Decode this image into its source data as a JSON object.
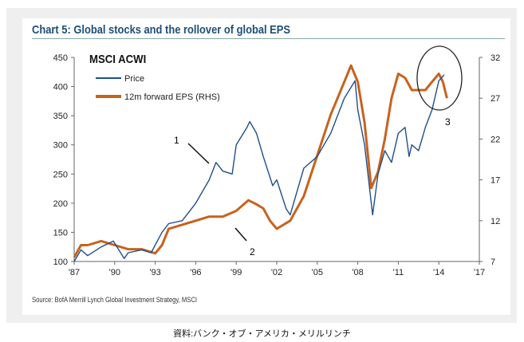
{
  "chart_data": {
    "type": "line",
    "title": "Chart 5: Global stocks and the rollover of global EPS",
    "subtitle": "MSCI ACWI",
    "source": "Source: BofA Merrill Lynch Global Investment Strategy, MSCI",
    "caption": "資料:バンク・オブ・アメリカ・メリルリンチ",
    "x_ticks": [
      "'87",
      "'90",
      "'93",
      "'96",
      "'99",
      "'02",
      "'05",
      "'08",
      "'11",
      "'14",
      "'17"
    ],
    "xlim": [
      1987,
      2017
    ],
    "ylim_left": [
      100,
      450
    ],
    "y_ticks_left": [
      "100",
      "150",
      "200",
      "250",
      "300",
      "350",
      "400",
      "450"
    ],
    "ylim_right": [
      7,
      32
    ],
    "y_ticks_right": [
      "7",
      "12",
      "17",
      "22",
      "27",
      "32"
    ],
    "legend": "top-left",
    "annotations": [
      "1",
      "2",
      "3"
    ],
    "series": [
      {
        "name": "Price",
        "axis": "left",
        "color": "#1f4e8c",
        "x": [
          1987,
          1987.5,
          1988,
          1989,
          1989.9,
          1990.7,
          1991,
          1992,
          1992.7,
          1993.5,
          1994,
          1995,
          1996,
          1997,
          1997.5,
          1998,
          1998.7,
          1999,
          1999.8,
          2000,
          2000.5,
          2001,
          2001.7,
          2002,
          2002.7,
          2003,
          2003.5,
          2004,
          2005,
          2006,
          2007,
          2007.8,
          2008,
          2008.5,
          2009.1,
          2009.5,
          2010,
          2010.5,
          2011,
          2011.5,
          2011.8,
          2012,
          2012.5,
          2013,
          2013.5,
          2014,
          2014.4
        ],
        "y": [
          100,
          120,
          110,
          125,
          135,
          105,
          115,
          120,
          115,
          150,
          165,
          170,
          200,
          240,
          270,
          255,
          250,
          300,
          330,
          340,
          320,
          280,
          230,
          240,
          190,
          180,
          220,
          260,
          280,
          320,
          380,
          410,
          360,
          300,
          180,
          250,
          290,
          270,
          320,
          330,
          280,
          300,
          290,
          330,
          360,
          410,
          420
        ]
      },
      {
        "name": "12m forward EPS (RHS)",
        "axis": "right",
        "color": "#c8621e",
        "x": [
          1987,
          1987.5,
          1988,
          1989,
          1990,
          1991,
          1992,
          1993,
          1993.5,
          1994,
          1995,
          1996,
          1997,
          1998,
          1999,
          1999.9,
          2000.5,
          2001,
          2001.5,
          2002,
          2003,
          2004,
          2005,
          2006,
          2007,
          2007.5,
          2008,
          2008.5,
          2009,
          2009.5,
          2010,
          2010.5,
          2011,
          2011.5,
          2012,
          2012.5,
          2013,
          2013.5,
          2014,
          2014.3,
          2014.6
        ],
        "y": [
          7.5,
          9,
          9,
          9.5,
          9,
          8.5,
          8.5,
          8,
          9,
          11,
          11.5,
          12,
          12.5,
          12.5,
          13.2,
          14.5,
          14,
          13.5,
          12,
          11,
          12,
          15,
          20,
          25,
          29,
          31,
          29,
          24,
          16,
          18,
          22,
          27,
          30,
          29.5,
          28,
          28,
          28,
          29,
          30,
          29,
          27
        ]
      }
    ]
  }
}
